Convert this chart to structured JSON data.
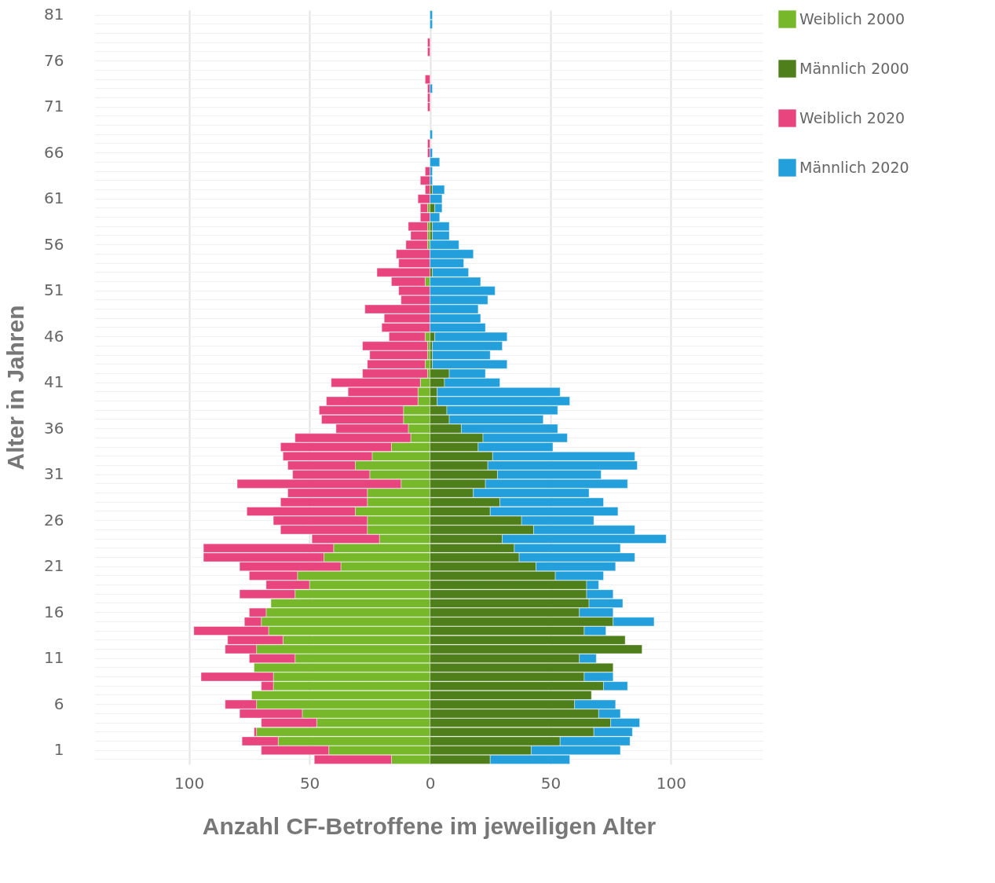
{
  "chart_data": {
    "type": "bar",
    "orientation": "horizontal",
    "stacked": true,
    "xlabel": "Anzahl CF-Betroffene im jeweiligen Alter",
    "ylabel": "Alter in Jahren",
    "categories": [
      "81",
      null,
      null,
      null,
      null,
      "76",
      null,
      null,
      null,
      null,
      "71",
      null,
      null,
      null,
      null,
      "66",
      null,
      null,
      null,
      null,
      "61",
      null,
      null,
      null,
      null,
      "56",
      null,
      null,
      null,
      null,
      "51",
      null,
      null,
      null,
      null,
      "46",
      null,
      null,
      null,
      null,
      "41",
      null,
      null,
      null,
      null,
      "36",
      null,
      null,
      null,
      null,
      "31",
      null,
      null,
      null,
      null,
      "26",
      null,
      null,
      null,
      null,
      "21",
      null,
      null,
      null,
      null,
      "16",
      null,
      null,
      null,
      null,
      "11",
      null,
      null,
      null,
      null,
      "6",
      null,
      null,
      null,
      null,
      "1",
      null
    ],
    "series": [
      {
        "name": "Weiblich 2000",
        "color": "#76b82a",
        "values": [
          null,
          null,
          null,
          null,
          null,
          null,
          null,
          null,
          null,
          null,
          null,
          null,
          null,
          null,
          null,
          null,
          null,
          null,
          null,
          null,
          null,
          -1,
          null,
          -1,
          -1,
          -1,
          null,
          null,
          null,
          -2,
          null,
          null,
          null,
          null,
          null,
          -2,
          -1,
          -1,
          -2,
          -1,
          -4,
          -5,
          -5,
          -11,
          -11,
          -9,
          -8,
          -16,
          -24,
          -31,
          -25,
          -12,
          -26,
          -26,
          -31,
          -26,
          -26,
          -21,
          -40,
          -44,
          -37,
          -55,
          -50,
          -56,
          -66,
          -68,
          -70,
          -67,
          -61,
          -72,
          -56,
          -73,
          -65,
          -65,
          -74,
          -72,
          -53,
          -47,
          -72,
          -63,
          -42,
          -16
        ]
      },
      {
        "name": "Männlich 2000",
        "color": "#4f7f1a",
        "values": [
          null,
          null,
          null,
          null,
          null,
          null,
          null,
          null,
          null,
          null,
          null,
          null,
          null,
          null,
          null,
          null,
          null,
          null,
          null,
          1,
          null,
          2,
          null,
          1,
          1,
          null,
          null,
          null,
          1,
          null,
          null,
          null,
          null,
          null,
          null,
          2,
          1,
          1,
          1,
          8,
          6,
          3,
          3,
          7,
          8,
          13,
          22,
          20,
          26,
          24,
          28,
          23,
          18,
          29,
          25,
          38,
          43,
          30,
          35,
          37,
          44,
          52,
          65,
          65,
          66,
          62,
          76,
          64,
          81,
          88,
          62,
          76,
          64,
          72,
          67,
          60,
          70,
          75,
          68,
          54,
          42,
          25
        ]
      },
      {
        "name": "Weiblich 2020",
        "color": "#e8457e",
        "values": [
          null,
          null,
          null,
          -1,
          -1,
          null,
          null,
          -2,
          -1,
          -1,
          -1,
          null,
          null,
          null,
          -1,
          -1,
          null,
          -2,
          -4,
          -2,
          -5,
          -3,
          -4,
          -8,
          -7,
          -9,
          -14,
          -13,
          -22,
          -14,
          -13,
          -12,
          -27,
          -19,
          -20,
          -15,
          -27,
          -24,
          -24,
          -27,
          -37,
          -29,
          -38,
          -35,
          -34,
          -30,
          -48,
          -46,
          -37,
          -28,
          -32,
          -68,
          -33,
          -36,
          -45,
          -39,
          -36,
          -28,
          -54,
          -50,
          -42,
          -20,
          -18,
          -23,
          null,
          -7,
          -7,
          -31,
          -23,
          -13,
          -19,
          null,
          -30,
          -5,
          null,
          -13,
          -26,
          -23,
          -1,
          -15,
          -28,
          -32
        ]
      },
      {
        "name": "Männlich 2020",
        "color": "#23a0db",
        "values": [
          1,
          1,
          null,
          null,
          null,
          null,
          null,
          null,
          1,
          null,
          null,
          null,
          null,
          1,
          null,
          1,
          4,
          1,
          1,
          5,
          5,
          3,
          4,
          7,
          7,
          12,
          18,
          14,
          15,
          21,
          27,
          24,
          20,
          21,
          23,
          30,
          29,
          24,
          31,
          15,
          23,
          51,
          55,
          46,
          39,
          40,
          35,
          31,
          59,
          62,
          43,
          59,
          48,
          43,
          53,
          30,
          42,
          68,
          44,
          48,
          33,
          20,
          5,
          11,
          14,
          14,
          17,
          9,
          null,
          null,
          7,
          null,
          12,
          10,
          null,
          17,
          9,
          12,
          16,
          29,
          37,
          33
        ]
      }
    ],
    "xlim": [
      -139,
      138
    ],
    "xticks": [
      {
        "value": -100,
        "label": "100"
      },
      {
        "value": -50,
        "label": "50"
      },
      0,
      50,
      100
    ],
    "grid": true,
    "legend": "right"
  }
}
